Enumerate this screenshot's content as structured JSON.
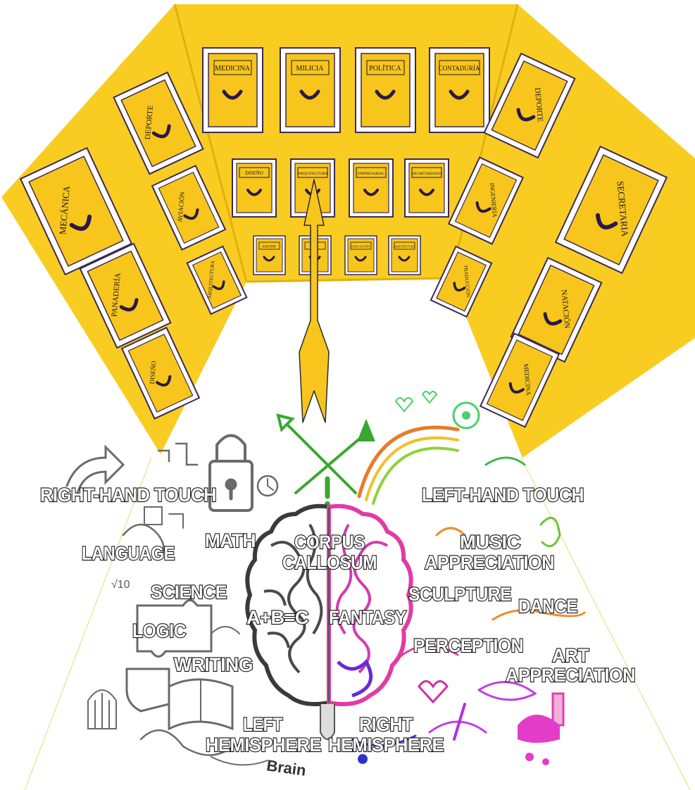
{
  "colors": {
    "wall_yellow": "#f9cc22",
    "drawer_yellow": "#f7c51c",
    "drawer_border": "#3a2a55",
    "handle": "#2a1a45",
    "arrow_fill": "#f7c51c",
    "left_brain": "#4a4a4a",
    "right_brain_pink": "#e83ca6",
    "right_brain_purple": "#6a2ad8"
  },
  "drawers": {
    "back_top": [
      "MEDICINA",
      "MILICIA",
      "POLÍTICA",
      "CONTADURÍA"
    ],
    "back_mid": [
      "DISEÑO",
      "ARQUITECTURA",
      "EMPRESARIAL",
      "SECRETARIADO"
    ],
    "back_low": [
      "ASESOR",
      "",
      "EDUCACIÓN",
      "ARQUITECTURA"
    ],
    "left_wall": [
      "DEPORTE",
      "MECÁNICA",
      "AVIACIÓN",
      "ARQUITECTURA",
      "PANADERÍA",
      "DISEÑO"
    ],
    "right_wall": [
      "DEPORTE",
      "INGENIERÍA",
      "SECRETARIA",
      "TRADUCCIÓN",
      "NATACIÓN",
      "MEDICINA"
    ]
  },
  "labels": {
    "right_hand_touch": "RIGHT-HAND TOUCH",
    "left_hand_touch": "LEFT-HAND TOUCH",
    "language": "LANGUAGE",
    "math": "MATH",
    "corpus": "CORPUS",
    "callosum": "CALLOSUM",
    "music": "MUSIC",
    "appreciation_music": "APPRECIATION",
    "science": "SCIENCE",
    "sculpture": "SCULPTURE",
    "dance": "DANCE",
    "formula": "A+B=C",
    "fantasy": "FANTASY",
    "logic": "LOGIC",
    "perception": "PERCEPTION",
    "art": "ART",
    "appreciation_art": "APPRECIATION",
    "writing": "WRITING",
    "left": "LEFT",
    "hemisphere_left": "HEMISPHERE",
    "right": "RIGHT",
    "hemisphere_right": "HEMISPHERE",
    "sketch_sqrt": "√10",
    "sketch_brain": "Brain"
  }
}
